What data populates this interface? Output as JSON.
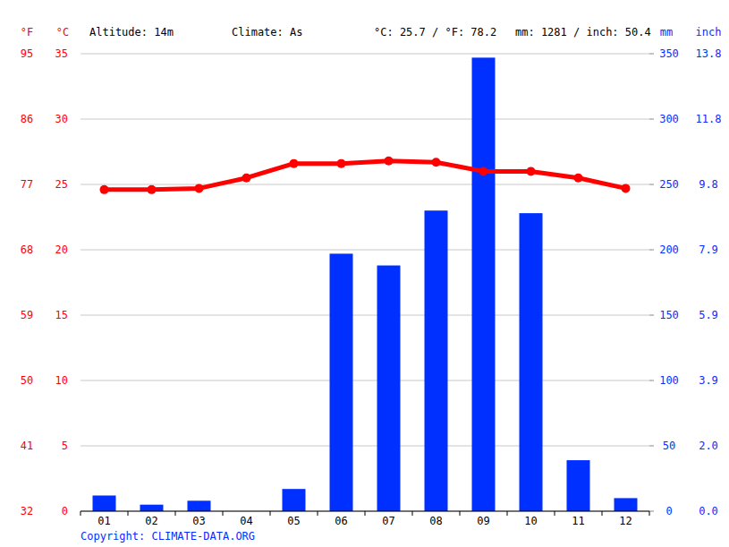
{
  "chart_data": {
    "type": "bar",
    "annotations": [
      "Altitude: 14m",
      "Climate: As",
      "°C: 25.7 / °F: 78.2",
      "mm: 1281 / inch: 50.4"
    ],
    "footer": "Copyright: CLIMATE-DATA.ORG",
    "y_label": "°C",
    "y_alt_label": "°F",
    "y2_label": "mm",
    "y2_alt_label": "inch",
    "categories": [
      "01",
      "02",
      "03",
      "04",
      "05",
      "06",
      "07",
      "08",
      "09",
      "10",
      "11",
      "12"
    ],
    "series": [
      {
        "type": "line",
        "color": "#ff0000",
        "marker": "circle",
        "values": [
          24.6,
          24.6,
          24.7,
          25.5,
          26.6,
          26.6,
          26.8,
          26.7,
          26.0,
          26.0,
          25.5,
          24.7
        ]
      },
      {
        "type": "bar",
        "color": "#0030ff",
        "axis": "y2",
        "values": [
          12,
          5,
          8,
          0,
          17,
          197,
          188,
          230,
          347,
          228,
          39,
          10
        ]
      }
    ],
    "ylim": [
      0,
      35
    ],
    "yticks": [
      0,
      5,
      10,
      15,
      20,
      25,
      30,
      35
    ],
    "y_alt_ticks": [
      {
        "value": 0,
        "label": "32"
      },
      {
        "value": 5,
        "label": "41"
      },
      {
        "value": 10,
        "label": "50"
      },
      {
        "value": 15,
        "label": "59"
      },
      {
        "value": 20,
        "label": "68"
      },
      {
        "value": 25,
        "label": "77"
      },
      {
        "value": 30,
        "label": "86"
      },
      {
        "value": 35,
        "label": "95"
      }
    ],
    "y2lim": [
      0,
      350
    ],
    "y2ticks": [
      0,
      50,
      100,
      150,
      200,
      250,
      300,
      350
    ],
    "y2_alt_ticks": [
      {
        "value": 0,
        "label": "0.0"
      },
      {
        "value": 50,
        "label": "2.0"
      },
      {
        "value": 100,
        "label": "3.9"
      },
      {
        "value": 150,
        "label": "5.9"
      },
      {
        "value": 200,
        "label": "7.9"
      },
      {
        "value": 250,
        "label": "9.8"
      },
      {
        "value": 300,
        "label": "11.8"
      },
      {
        "value": 350,
        "label": "13.8"
      }
    ],
    "grid": true
  }
}
